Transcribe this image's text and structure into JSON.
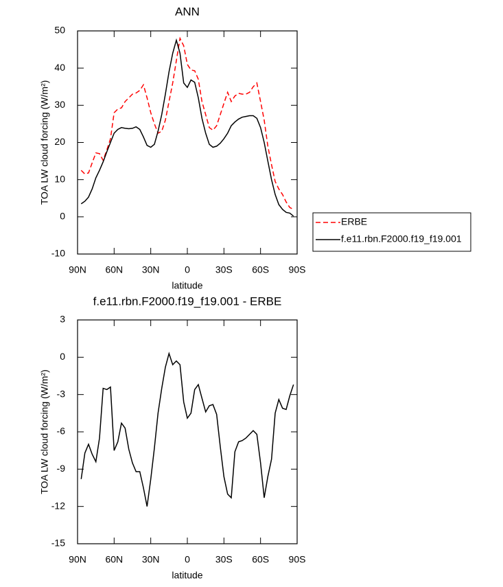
{
  "chart_data": [
    {
      "type": "line",
      "title": "ANN",
      "x_label": "latitude",
      "y_label": "TOA LW cloud forcing (W/m²)",
      "x": [
        87,
        84,
        81,
        78,
        75,
        72,
        69,
        66,
        63,
        60,
        57,
        54,
        51,
        48,
        45,
        42,
        39,
        36,
        33,
        30,
        27,
        24,
        21,
        18,
        15,
        12,
        9,
        6,
        3,
        0,
        -3,
        -6,
        -9,
        -12,
        -15,
        -18,
        -21,
        -24,
        -27,
        -30,
        -33,
        -36,
        -39,
        -42,
        -45,
        -48,
        -51,
        -54,
        -57,
        -60,
        -63,
        -66,
        -69,
        -72,
        -75,
        -78,
        -81,
        -84,
        -87
      ],
      "series": [
        {
          "name": "ERBE",
          "color": "#ff0000",
          "line_style": "dashed",
          "values": [
            12.5,
            11.5,
            11.8,
            14.5,
            17.2,
            17,
            15.2,
            18,
            21,
            28,
            29,
            29.3,
            31,
            32,
            33,
            33.3,
            34,
            35.5,
            32,
            28,
            25,
            22.5,
            23,
            26,
            31,
            36,
            42,
            48,
            46,
            41,
            39.5,
            39.3,
            37,
            31,
            27.5,
            24,
            23.3,
            24.5,
            27.5,
            30.5,
            33.5,
            31,
            32.5,
            33.2,
            33,
            33,
            33.5,
            35,
            36,
            31,
            26,
            19,
            14,
            9.5,
            7.5,
            6,
            4,
            2.5,
            2
          ]
        },
        {
          "name": "f.e11.rbn.F2000.f19_f19.001",
          "color": "#000000",
          "line_style": "solid",
          "values": [
            3.5,
            4.2,
            5.3,
            7.5,
            10.5,
            12.5,
            14.8,
            17.5,
            20,
            22.5,
            23.5,
            24,
            23.8,
            23.7,
            23.8,
            24.2,
            23.5,
            21.5,
            19.2,
            18.7,
            19.5,
            23,
            27.5,
            33,
            39,
            44,
            47.5,
            44,
            36,
            34.8,
            36.8,
            36.2,
            32,
            26.5,
            22.5,
            19.5,
            18.7,
            19,
            19.8,
            21,
            22.5,
            24.5,
            25.5,
            26.3,
            26.8,
            27,
            27.2,
            27.2,
            26.5,
            24,
            20,
            15,
            10,
            6,
            3.3,
            2,
            1.2,
            1,
            0.2
          ]
        }
      ],
      "xlim": [
        90,
        -90
      ],
      "xticks": [
        {
          "value": 90,
          "label": "90N"
        },
        {
          "value": 60,
          "label": "60N"
        },
        {
          "value": 30,
          "label": "30N"
        },
        0,
        {
          "value": -30,
          "label": "30S"
        },
        {
          "value": -60,
          "label": "60S"
        },
        {
          "value": -90,
          "label": "90S"
        }
      ],
      "ylim": [
        -10,
        50
      ],
      "yticks": [
        -10,
        0,
        10,
        20,
        30,
        40,
        50
      ],
      "legend": "right-outside"
    },
    {
      "type": "line",
      "title": "f.e11.rbn.F2000.f19_f19.001 - ERBE",
      "x_label": "latitude",
      "y_label": "TOA LW cloud forcing (W/m²)",
      "x": [
        87,
        84,
        81,
        78,
        75,
        72,
        69,
        66,
        63,
        60,
        57,
        54,
        51,
        48,
        45,
        42,
        39,
        36,
        33,
        30,
        27,
        24,
        21,
        18,
        15,
        12,
        9,
        6,
        3,
        0,
        -3,
        -6,
        -9,
        -12,
        -15,
        -18,
        -21,
        -24,
        -27,
        -30,
        -33,
        -36,
        -39,
        -42,
        -45,
        -48,
        -51,
        -54,
        -57,
        -60,
        -63,
        -66,
        -69,
        -72,
        -75,
        -78,
        -81,
        -84,
        -87
      ],
      "series": [
        {
          "color": "#000000",
          "line_style": "solid",
          "values": [
            -9.8,
            -7.7,
            -7,
            -7.8,
            -8.4,
            -6.5,
            -2.5,
            -2.6,
            -2.4,
            -7.5,
            -6.8,
            -5.3,
            -5.7,
            -7.4,
            -8.5,
            -9.2,
            -9.2,
            -10.5,
            -12,
            -9.8,
            -7.3,
            -4.5,
            -2.5,
            -0.8,
            0.3,
            -0.6,
            -0.3,
            -0.6,
            -3.6,
            -4.9,
            -4.5,
            -2.6,
            -2.2,
            -3.3,
            -4.4,
            -3.9,
            -3.8,
            -4.6,
            -7.2,
            -9.6,
            -11,
            -11.3,
            -7.6,
            -6.8,
            -6.7,
            -6.5,
            -6.2,
            -5.9,
            -6.2,
            -8.5,
            -11.3,
            -9.6,
            -8.2,
            -4.5,
            -3.4,
            -4.1,
            -4.2,
            -3.1,
            -2.2
          ]
        }
      ],
      "xlim": [
        90,
        -90
      ],
      "xticks": [
        {
          "value": 90,
          "label": "90N"
        },
        {
          "value": 60,
          "label": "60N"
        },
        {
          "value": 30,
          "label": "30N"
        },
        0,
        {
          "value": -30,
          "label": "30S"
        },
        {
          "value": -60,
          "label": "60S"
        },
        {
          "value": -90,
          "label": "90S"
        }
      ],
      "ylim": [
        -15,
        3
      ],
      "yticks": [
        -15,
        -12,
        -9,
        -6,
        -3,
        0,
        3
      ]
    }
  ]
}
